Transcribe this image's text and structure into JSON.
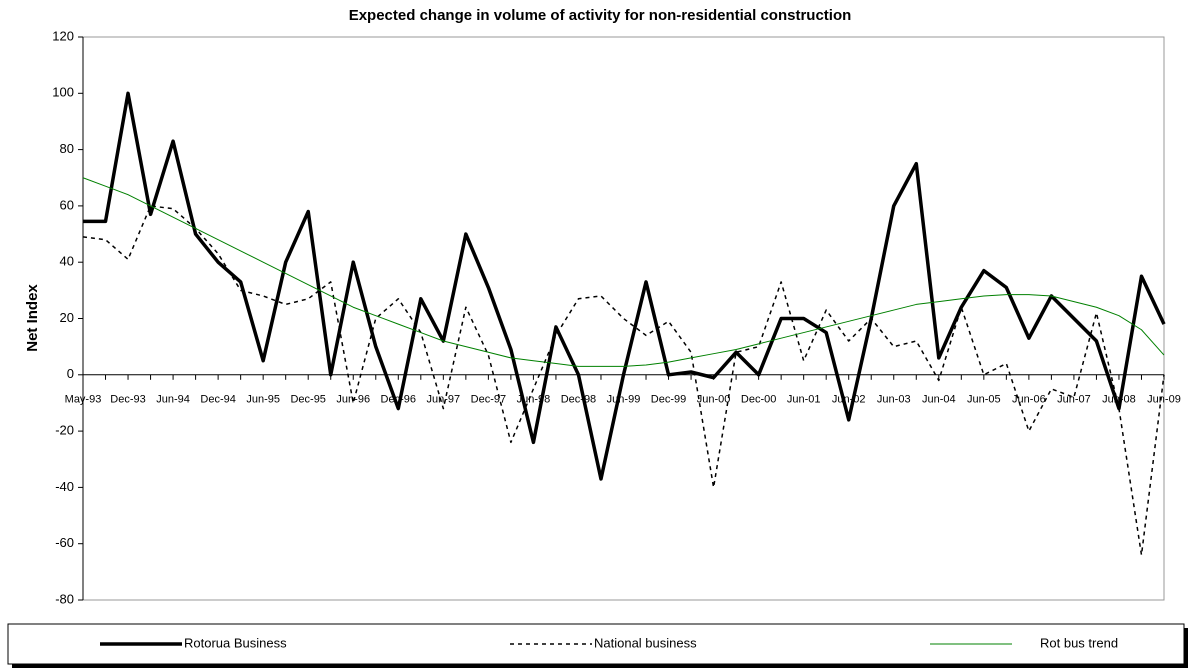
{
  "chart_data": {
    "type": "line",
    "title": "Expected change in volume of activity for non-residential construction",
    "y_label": "Net Index",
    "categories": [
      "May-93",
      null,
      "Dec-93",
      null,
      "Jun-94",
      null,
      "Dec-94",
      null,
      "Jun-95",
      null,
      "Dec-95",
      null,
      "Jun-96",
      null,
      "Dec-96",
      null,
      "Jun-97",
      null,
      "Dec-97",
      null,
      "Jun-98",
      null,
      "Dec-98",
      null,
      "Jun-99",
      null,
      "Dec-99",
      null,
      "Jun-00",
      null,
      "Dec-00",
      null,
      "Jun-01",
      null,
      "Jun-02",
      null,
      "Jun-03",
      null,
      "Jun-04",
      null,
      "Jun-05",
      null,
      "Jun-06",
      null,
      "Jun-07",
      null,
      "Jun-08",
      null,
      "Jun-09"
    ],
    "series": [
      {
        "name": "Rotorua Business",
        "color": "#000000",
        "line_style": "solid",
        "line_width": 3.5,
        "values": [
          54.5,
          54.5,
          100,
          57,
          83,
          50,
          40,
          33,
          5,
          40,
          58,
          0,
          40,
          10,
          -12,
          27,
          12,
          50,
          31,
          9,
          -24,
          17,
          0,
          -37,
          0,
          33,
          0,
          1,
          -1,
          8,
          0,
          20,
          20,
          15,
          -16,
          20,
          60,
          75,
          6,
          24,
          37,
          31,
          13,
          28,
          20,
          12,
          -12,
          35,
          18
        ]
      },
      {
        "name": "National business",
        "color": "#000000",
        "line_style": "dotted",
        "line_width": 1.5,
        "values": [
          49,
          48,
          41,
          60,
          59,
          52,
          43,
          30,
          28,
          25,
          27,
          33,
          -10,
          20,
          27,
          15,
          -12,
          24,
          7,
          -24,
          -5,
          14,
          27,
          28,
          20,
          14,
          19,
          8,
          -40,
          8,
          10,
          33,
          5,
          23,
          12,
          20,
          10,
          12,
          -2,
          24,
          0,
          4,
          -20,
          -5,
          -8,
          22,
          -12,
          -64,
          0
        ]
      },
      {
        "name": "Rot bus trend",
        "color": "#008000",
        "line_style": "solid",
        "line_width": 1,
        "values": [
          70,
          67,
          64,
          60,
          56,
          52,
          48,
          44,
          40,
          36,
          32,
          28,
          24,
          21,
          18,
          15,
          12,
          10,
          8,
          6,
          5,
          4,
          3,
          3,
          3,
          3.5,
          4.5,
          6,
          7.5,
          9,
          11,
          13,
          15,
          17,
          19,
          21,
          23,
          25,
          26,
          27,
          28,
          28.5,
          28.5,
          28,
          26,
          24,
          21,
          16,
          7
        ]
      }
    ],
    "ylim": [
      -80,
      120
    ],
    "yticks": [
      -80,
      -60,
      -40,
      -20,
      0,
      20,
      40,
      60,
      80,
      100,
      120
    ],
    "grid": false,
    "legend": "bottom"
  }
}
